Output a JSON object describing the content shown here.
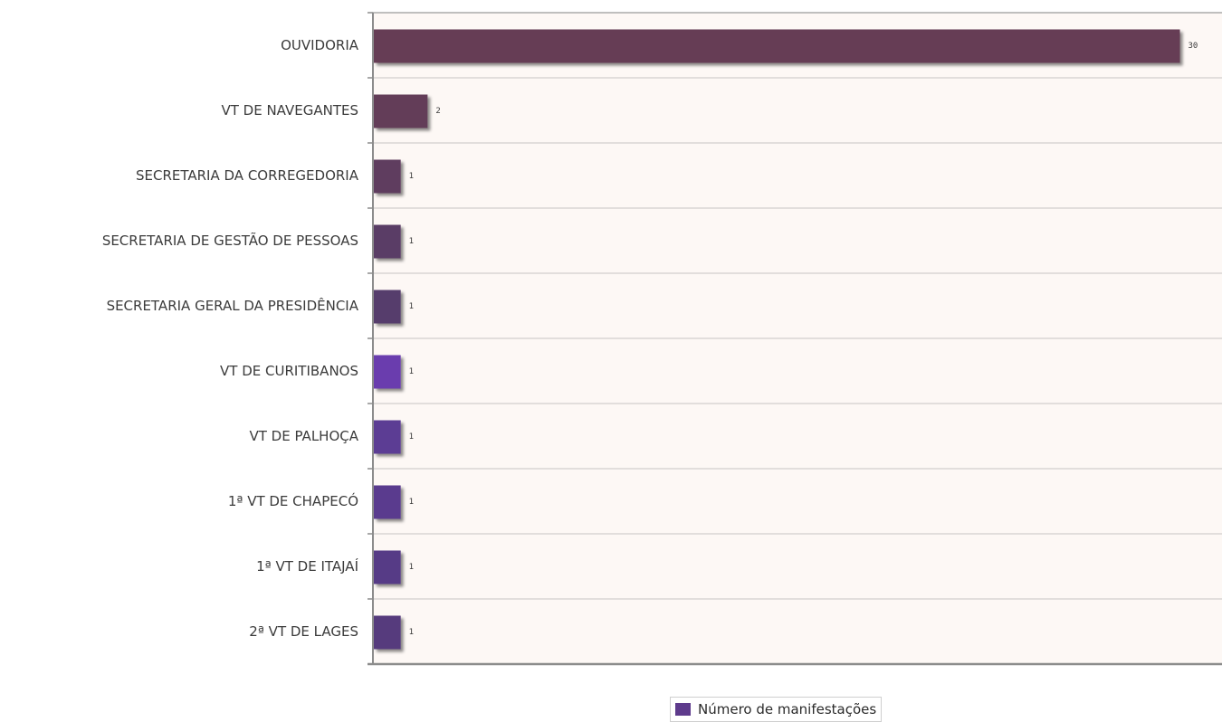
{
  "chart_data": {
    "type": "bar",
    "orientation": "horizontal",
    "categories": [
      "OUVIDORIA",
      "VT DE NAVEGANTES",
      "SECRETARIA DA CORREGEDORIA",
      "SECRETARIA DE GESTÃO DE PESSOAS",
      "SECRETARIA GERAL DA PRESIDÊNCIA",
      "VT DE CURITIBANOS",
      "VT DE PALHOÇA",
      "1ª VT DE CHAPECÓ",
      "1ª VT DE ITAJAÍ",
      "2ª VT DE LAGES"
    ],
    "series": [
      {
        "name": "Número de manifestações",
        "values": [
          30,
          2,
          1,
          1,
          1,
          1,
          1,
          1,
          1,
          1
        ]
      }
    ],
    "value_labels": [
      "30",
      "2",
      "1",
      "1",
      "1",
      "1",
      "1",
      "1",
      "1",
      "1"
    ],
    "bar_colors": [
      "#663d55",
      "#633d59",
      "#5f3d5e",
      "#5a3d66",
      "#563e6c",
      "#6a3cae",
      "#5c3c94",
      "#5a3b8e",
      "#573b86",
      "#563a7d"
    ],
    "xlim": [
      0,
      31.6
    ],
    "legend_position": "bottom",
    "legend_color": "#5e3b8c",
    "grid": true,
    "background": "#fdf8f5"
  }
}
